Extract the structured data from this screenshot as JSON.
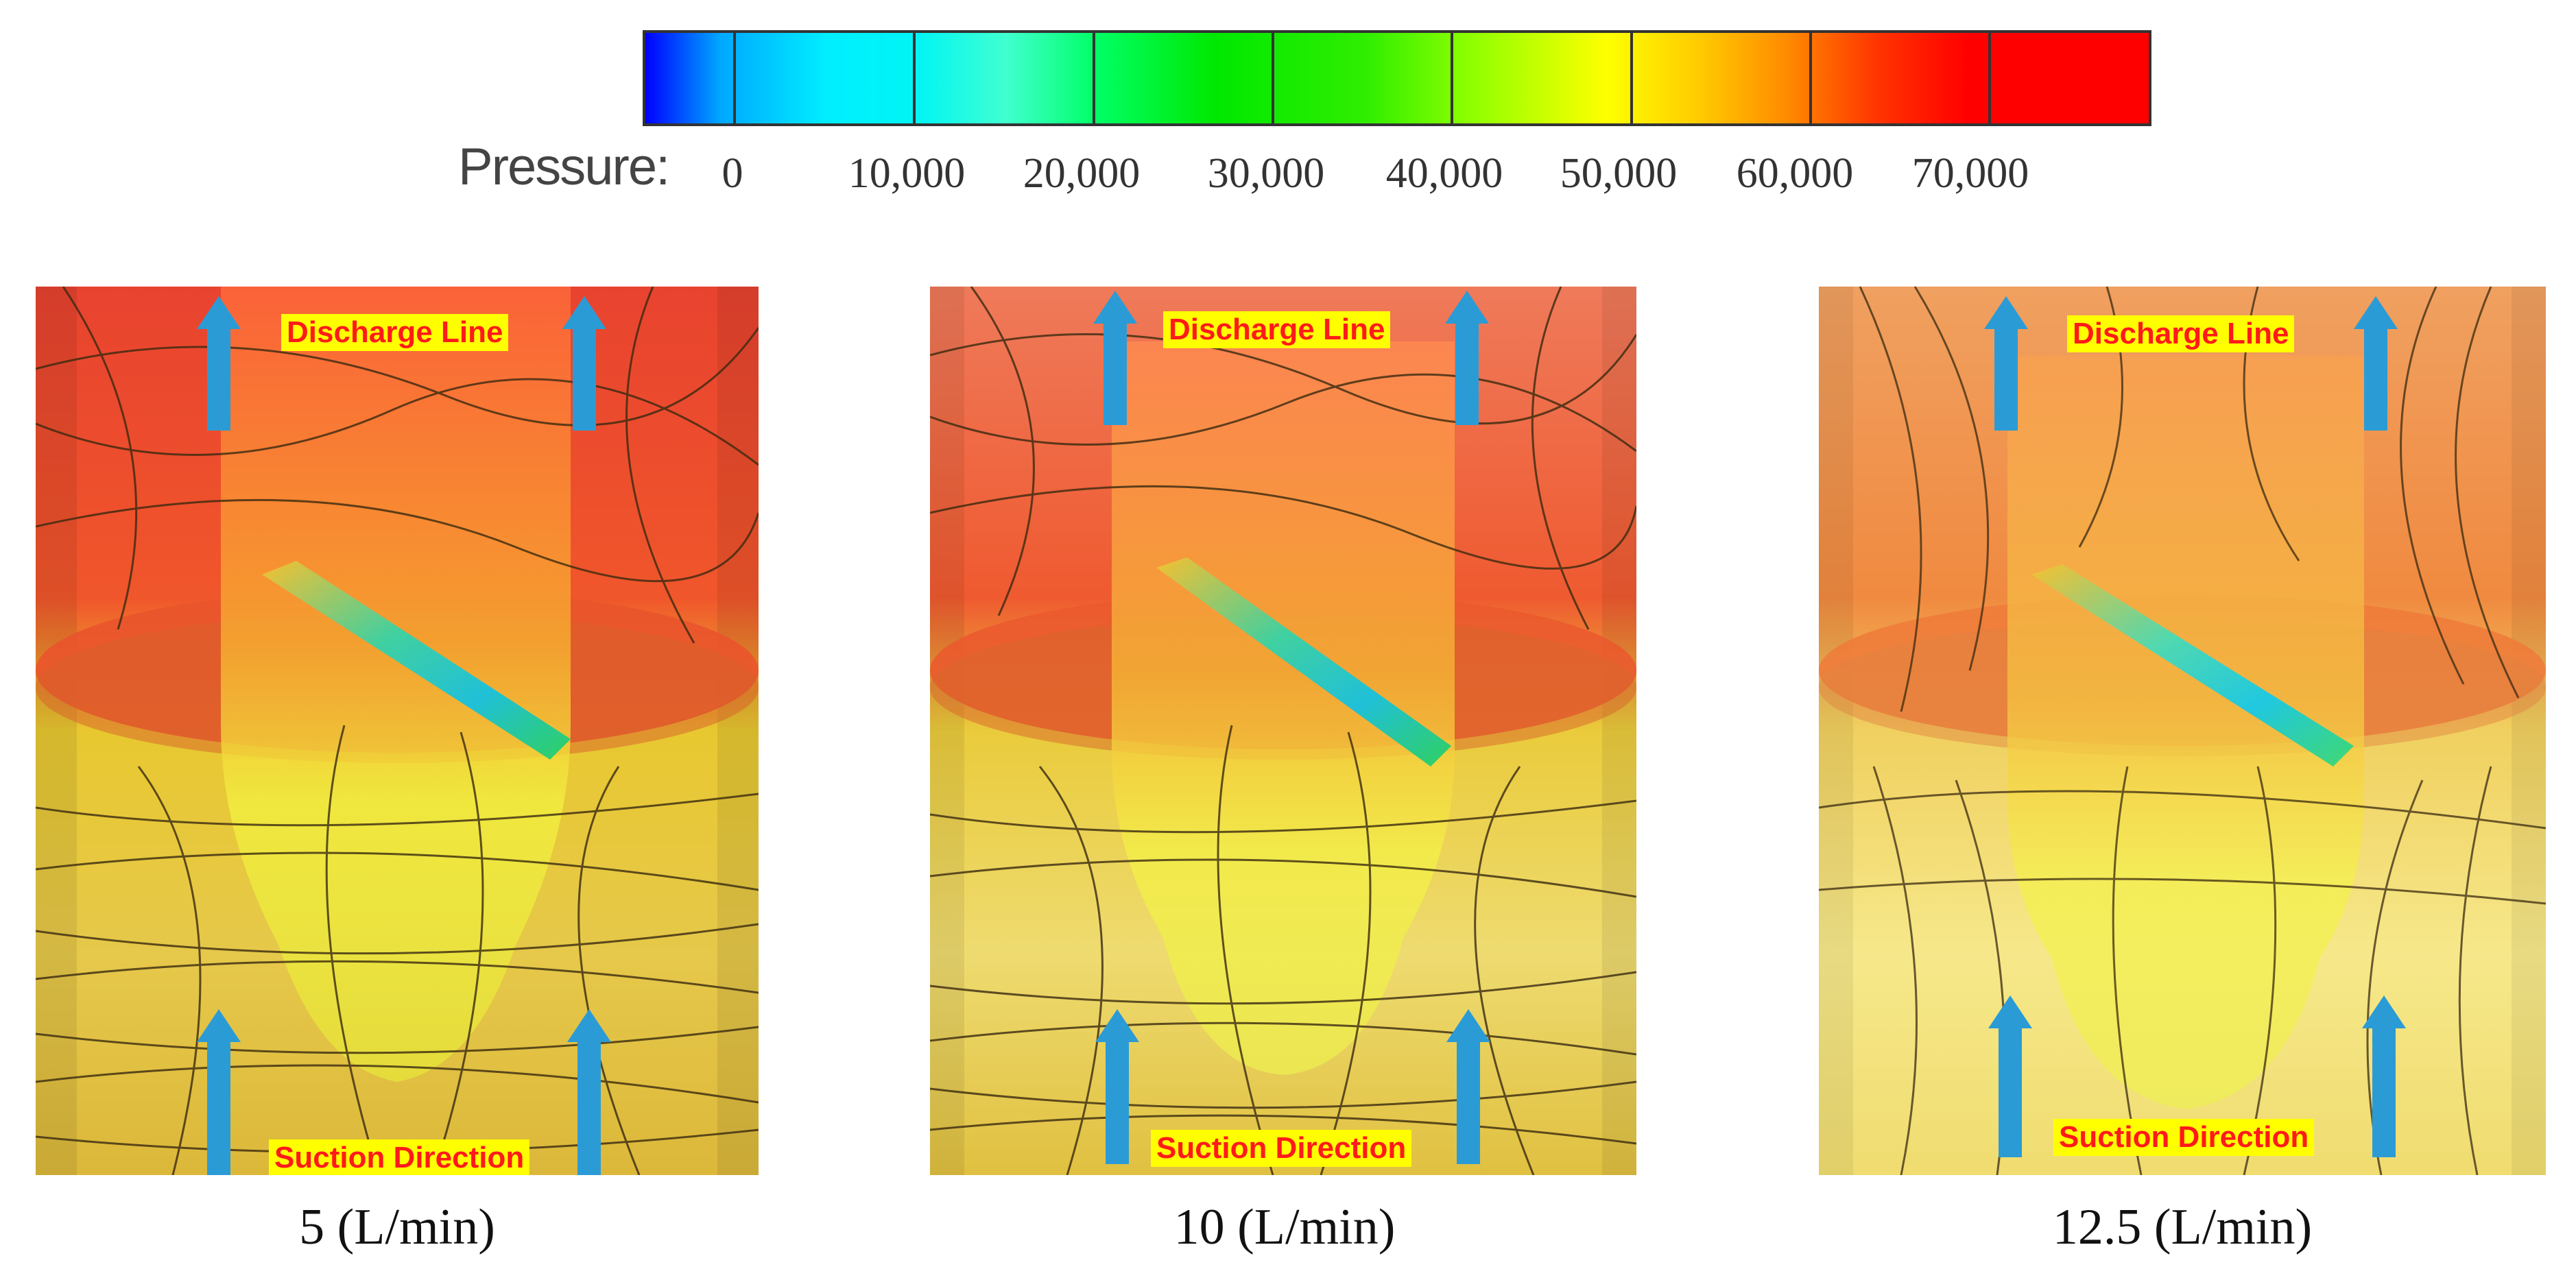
{
  "legend": {
    "title": "Pressure:",
    "ticks": [
      "0",
      "10,000",
      "20,000",
      "30,000",
      "40,000",
      "50,000",
      "60,000",
      "70,000"
    ]
  },
  "panels": [
    {
      "caption": "5 (L/min)",
      "discharge_label": "Discharge Line",
      "suction_label": "Suction Direction"
    },
    {
      "caption": "10 (L/min)",
      "discharge_label": "Discharge Line",
      "suction_label": "Suction Direction"
    },
    {
      "caption": "12.5 (L/min)",
      "discharge_label": "Discharge Line",
      "suction_label": "Suction Direction"
    }
  ],
  "colors": {
    "arrow": "#2b9bd6",
    "label_bg": "#ffff00",
    "label_text": "#ff1a1a",
    "streamline": "#3a2a10"
  }
}
